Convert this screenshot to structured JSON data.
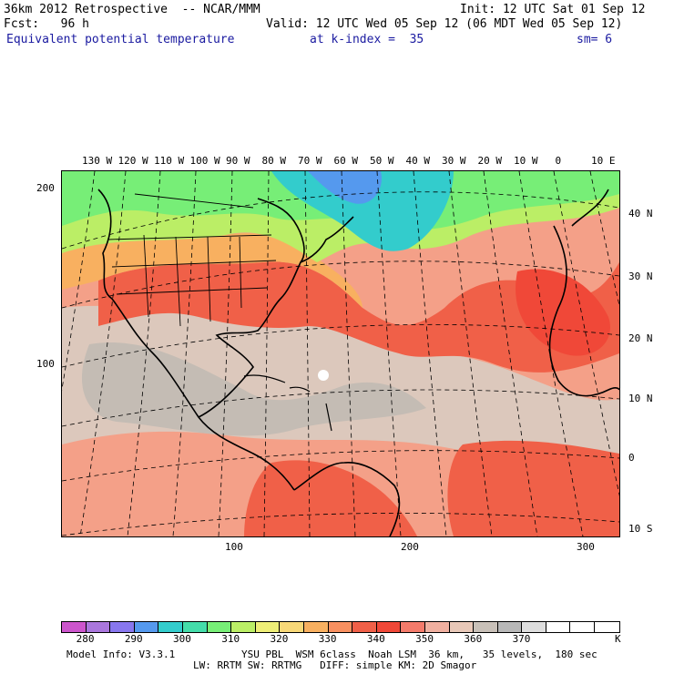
{
  "header": {
    "line1_left": "36km 2012 Retrospective  -- NCAR/MMM",
    "line1_right": "Init: 12 UTC Sat 01 Sep 12",
    "line2_left": "Fcst:   96 h",
    "line2_right": "Valid: 12 UTC Wed 05 Sep 12 (06 MDT Wed 05 Sep 12)",
    "field": "Equivalent potential temperature",
    "k_index": "at k-index =  35",
    "smoothing": "sm= 6"
  },
  "map": {
    "lon_labels": [
      "130 W",
      "120 W",
      "110 W",
      "100 W",
      "90 W",
      "80 W",
      "70 W",
      "60 W",
      "50 W",
      "40 W",
      "30 W",
      "20 W",
      "10 W",
      "0",
      "10 E"
    ],
    "lat_labels": [
      "40 N",
      "30 N",
      "20 N",
      "10 N",
      "0",
      "10 S"
    ],
    "grid_y_labels": [
      "200",
      "100"
    ],
    "grid_x_labels": [
      "100",
      "200",
      "300"
    ]
  },
  "colorbar": {
    "colors": [
      "#cc55cc",
      "#aa77dd",
      "#8877ee",
      "#5599ee",
      "#33cccc",
      "#44ddaa",
      "#77ee77",
      "#bbee66",
      "#eeee77",
      "#f8d878",
      "#f8b060",
      "#f89060",
      "#f06048",
      "#f04838",
      "#f47b6b",
      "#f0b0a0",
      "#e8c8b8",
      "#c8c0b8",
      "#b8b8b8",
      "#dedede",
      "#ffffff",
      "#ffffff",
      "#ffffff"
    ],
    "labels": [
      "280",
      "290",
      "300",
      "310",
      "320",
      "330",
      "340",
      "350",
      "360",
      "370"
    ],
    "unit": "K"
  },
  "footer": {
    "model_info": "Model Info: V3.3.1",
    "line1": "YSU PBL  WSM 6class  Noah LSM  36 km,   35 levels,  180 sec",
    "line2": "LW: RRTM SW: RRTMG   DIFF: simple KM: 2D Smagor"
  }
}
